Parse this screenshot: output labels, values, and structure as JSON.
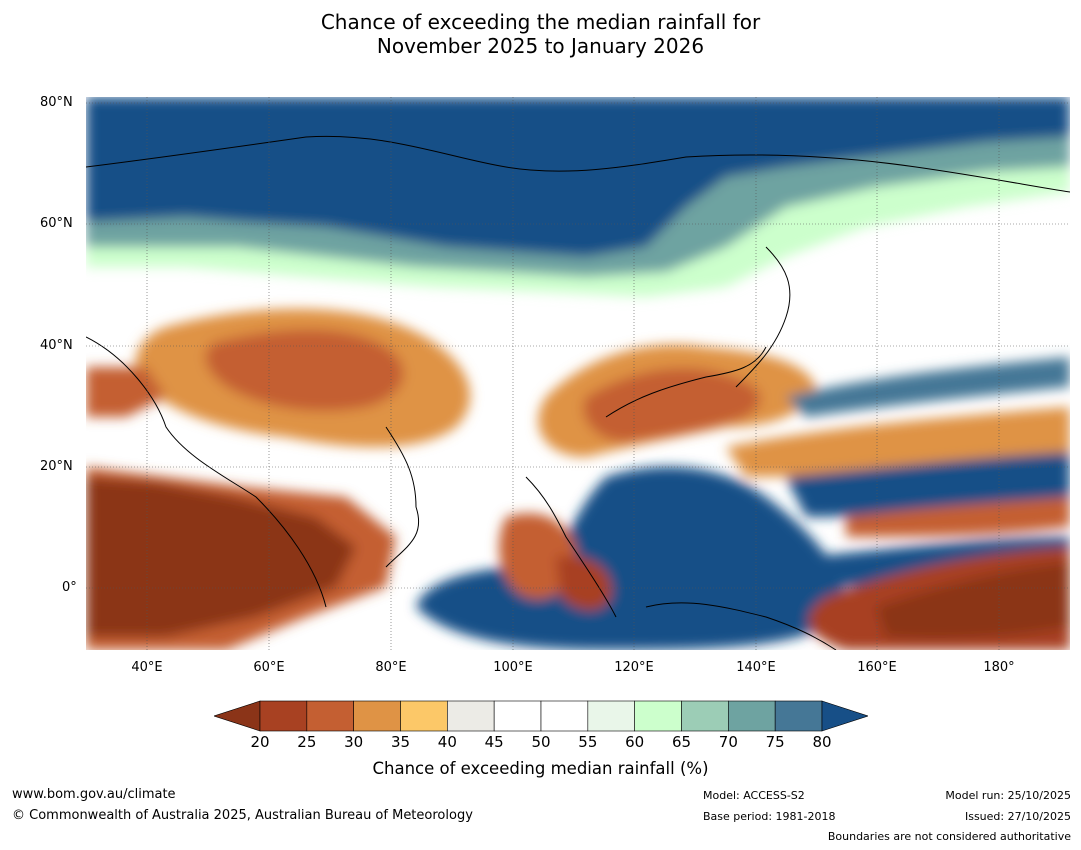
{
  "title": {
    "line1": "Chance of exceeding the median rainfall for",
    "line2": "November 2025 to January 2026"
  },
  "map": {
    "lat_labels": [
      "80°N",
      "60°N",
      "40°N",
      "20°N",
      "0°"
    ],
    "lon_labels": [
      "40°E",
      "60°E",
      "80°E",
      "100°E",
      "120°E",
      "140°E",
      "160°E",
      "180°"
    ]
  },
  "colorbar": {
    "title": "Chance of exceeding median rainfall (%)",
    "ticks": [
      "20",
      "25",
      "30",
      "35",
      "40",
      "45",
      "50",
      "55",
      "60",
      "65",
      "70",
      "75",
      "80"
    ],
    "under_color": "#8b3418",
    "over_color": "#174f87",
    "colors": [
      "#a84122",
      "#c45f32",
      "#df9345",
      "#fcc868",
      "#ecebe6",
      "#ffffff",
      "#ffffff",
      "#e9f6e9",
      "#ccffcc",
      "#9ccdb6",
      "#6ea3a1",
      "#457796"
    ]
  },
  "footer": {
    "url": "www.bom.gov.au/climate",
    "copyright": "© Commonwealth of Australia 2025, Australian Bureau of Meteorology",
    "model": "Model: ACCESS-S2",
    "base_period": "Base period: 1981-2018",
    "model_run": "Model run: 25/10/2025",
    "issued": "Issued: 27/10/2025",
    "disclaimer": "Boundaries are not considered authoritative"
  }
}
